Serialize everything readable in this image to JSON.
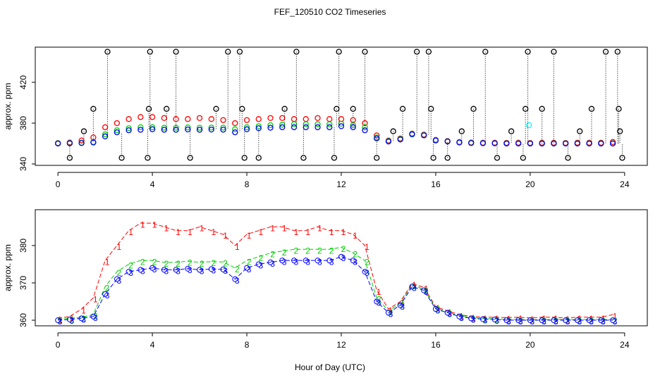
{
  "chart_data": [
    {
      "type": "scatter",
      "title": "FEF_120510  CO2 Timeseries",
      "ylabel": "approx. ppm",
      "xlim": [
        -0.96,
        24.96
      ],
      "xticks": [
        0,
        4,
        8,
        12,
        16,
        20,
        24
      ],
      "ylim": [
        338.6,
        454.5
      ],
      "yticks": [
        340,
        380,
        420
      ],
      "x": [
        0,
        0.5,
        1,
        1.5,
        2,
        2.5,
        3,
        3.5,
        4,
        4.5,
        5,
        5.5,
        6,
        6.5,
        7,
        7.5,
        8,
        8.5,
        9,
        9.5,
        10,
        10.5,
        11,
        11.5,
        12,
        12.5,
        13,
        13.5,
        14,
        14.5,
        15,
        15.5,
        16,
        16.5,
        17,
        17.5,
        18,
        18.5,
        19,
        19.5,
        20,
        20.5,
        21,
        21.5,
        22,
        22.5,
        23,
        23.5
      ],
      "series": [
        {
          "color": "#ff0000",
          "values": [
            360.5,
            361,
            363,
            366,
            376,
            380,
            384,
            386,
            386,
            385,
            384,
            384,
            385,
            384,
            383,
            380,
            383,
            384,
            385,
            385,
            384,
            384,
            385,
            384,
            384,
            383,
            380,
            368,
            363,
            365,
            369.8,
            368.8,
            363.6,
            362.5,
            361.5,
            361,
            360.8,
            360.8,
            360.7,
            360.8,
            360.6,
            360.8,
            360.8,
            360.6,
            360.8,
            360.8,
            360.8,
            361.5
          ]
        },
        {
          "color": "#00cd00",
          "values": [
            360.3,
            360.5,
            360.8,
            361.5,
            369,
            373,
            375,
            376,
            376,
            375.5,
            375.5,
            375.8,
            375.5,
            375.7,
            375.6,
            374,
            376,
            377,
            378,
            378.5,
            379,
            379,
            379,
            379,
            379.5,
            378,
            376,
            366,
            362.5,
            364.5,
            369.5,
            368.3,
            363.3,
            362.2,
            361.2,
            360.7,
            360.5,
            360.4,
            360.2,
            360.2,
            360.1,
            360.2,
            360.2,
            360.2,
            360.2,
            360.2,
            360.2,
            360.2
          ]
        },
        {
          "color": "#0000ff",
          "values": [
            360,
            360.2,
            360.5,
            361,
            367,
            371,
            373,
            373.5,
            374,
            373.5,
            373.5,
            373.8,
            373.5,
            373.7,
            373.6,
            371,
            374,
            375,
            375.5,
            376,
            376,
            376,
            376,
            376,
            377,
            376,
            373,
            365,
            362,
            364,
            369,
            368,
            363,
            362,
            361,
            360.5,
            360.3,
            360.2,
            360,
            360,
            360,
            360,
            360,
            360,
            360,
            360,
            360,
            360
          ]
        },
        {
          "color": "#00ffff",
          "x": [
            19.95
          ],
          "values": [
            378
          ]
        },
        {
          "color": "#000000",
          "drop": true,
          "x": [
            0.5,
            1.1,
            1.5,
            2.1,
            2.7,
            3.8,
            3.85,
            3.9,
            4.6,
            5.0,
            5.6,
            6.7,
            7.2,
            7.7,
            7.8,
            7.9,
            8.5,
            9.6,
            10.1,
            10.4,
            11.7,
            11.8,
            11.9,
            12.5,
            13.0,
            13.5,
            14.2,
            14.6,
            15.2,
            15.7,
            15.8,
            15.9,
            16.5,
            17.1,
            17.6,
            18.1,
            18.6,
            19.2,
            19.7,
            19.8,
            19.9,
            20.5,
            21.0,
            21.6,
            22.1,
            22.6,
            23.2,
            23.7,
            23.75,
            23.8,
            23.9
          ],
          "values": [
            346,
            372,
            394,
            450,
            346,
            346,
            394,
            450,
            394,
            450,
            346,
            394,
            450,
            450,
            394,
            346,
            346,
            394,
            450,
            346,
            346,
            394,
            450,
            394,
            450,
            346,
            372,
            394,
            450,
            450,
            394,
            346,
            346,
            372,
            394,
            450,
            346,
            372,
            346,
            394,
            450,
            394,
            450,
            346,
            372,
            394,
            450,
            450,
            394,
            372,
            346
          ]
        }
      ]
    },
    {
      "type": "line",
      "ylabel": "approx. ppm",
      "xlabel": "Hour of Day (UTC)",
      "xlim": [
        -0.96,
        24.96
      ],
      "xticks": [
        0,
        4,
        8,
        12,
        16,
        20,
        24
      ],
      "ylim": [
        358.5,
        389.6
      ],
      "yticks": [
        360,
        370,
        380
      ],
      "x": [
        0,
        0.5,
        1,
        1.5,
        2,
        2.5,
        3,
        3.5,
        4,
        4.5,
        5,
        5.5,
        6,
        6.5,
        7,
        7.5,
        8,
        8.5,
        9,
        9.5,
        10,
        10.5,
        11,
        11.5,
        12,
        12.5,
        13,
        13.5,
        14,
        14.5,
        15,
        15.5,
        16,
        16.5,
        17,
        17.5,
        18,
        18.5,
        19,
        19.5,
        20,
        20.5,
        21,
        21.5,
        22,
        22.5,
        23,
        23.5
      ],
      "series": [
        {
          "color": "#ff0000",
          "marker": "1",
          "values": [
            360.5,
            361,
            363,
            366,
            376,
            380,
            384,
            386,
            386,
            385,
            384,
            384,
            385,
            384,
            383,
            380,
            383,
            384,
            385,
            385,
            384,
            384,
            385,
            384,
            384,
            383,
            380,
            368,
            363,
            365,
            369.8,
            368.8,
            363.6,
            362.5,
            361.5,
            361,
            360.8,
            360.8,
            360.7,
            360.8,
            360.6,
            360.8,
            360.8,
            360.6,
            360.8,
            360.8,
            360.8,
            361.5
          ]
        },
        {
          "color": "#00cd00",
          "marker": "2",
          "values": [
            360.3,
            360.5,
            360.8,
            361.5,
            369,
            373,
            375,
            376,
            376,
            375.5,
            375.5,
            375.8,
            375.5,
            375.7,
            375.6,
            374,
            376,
            377,
            378,
            378.5,
            379,
            379,
            379,
            379,
            379.5,
            378,
            376,
            366,
            362.5,
            364.5,
            369.5,
            368.3,
            363.3,
            362.2,
            361.2,
            360.7,
            360.5,
            360.4,
            360.2,
            360.2,
            360.1,
            360.2,
            360.2,
            360.2,
            360.2,
            360.2,
            360.2,
            360.2
          ]
        },
        {
          "color": "#0000ff",
          "marker": "3",
          "circle": true,
          "values": [
            360,
            360.2,
            360.5,
            361,
            367,
            371,
            373,
            373.5,
            374,
            373.5,
            373.5,
            373.8,
            373.5,
            373.7,
            373.6,
            371,
            374,
            375,
            375.5,
            376,
            376,
            376,
            376,
            376,
            377,
            376,
            373,
            365,
            362,
            364,
            369,
            368,
            363,
            362,
            361,
            360.5,
            360.3,
            360.2,
            360,
            360,
            360,
            360,
            360,
            360,
            360,
            360,
            360,
            360
          ]
        }
      ]
    }
  ]
}
